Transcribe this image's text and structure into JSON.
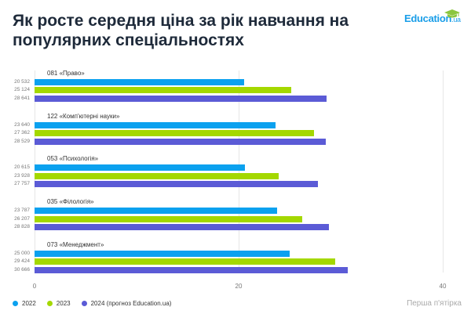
{
  "header": {
    "title": "Як росте середня ціна за рік навчання на популярних спеціальностях",
    "logo_main": "Education",
    "logo_suffix": ".ua"
  },
  "footer": {
    "note": "Перша п'ятірка"
  },
  "colors": {
    "2022": "#0ba1ef",
    "2023": "#a4d800",
    "2024": "#5b5bd6"
  },
  "chart_data": {
    "type": "bar",
    "orientation": "horizontal",
    "categories": [
      "081 «Право»",
      "122 «Комп'ютерні науки»",
      "053 «Психологія»",
      "035 «Філологія»",
      "073 «Менеджмент»"
    ],
    "series": [
      {
        "name": "2022",
        "values": [
          20532,
          23640,
          20615,
          23787,
          25000
        ],
        "labels": [
          "20 532",
          "23 640",
          "20 615",
          "23 787",
          "25 000"
        ]
      },
      {
        "name": "2023",
        "values": [
          25124,
          27362,
          23928,
          26207,
          29424
        ],
        "labels": [
          "25 124",
          "27 362",
          "23 928",
          "26 207",
          "29 424"
        ]
      },
      {
        "name": "2024 (прогноз Education.ua)",
        "values": [
          28641,
          28529,
          27757,
          28828,
          30666
        ],
        "labels": [
          "28 641",
          "28 529",
          "27 757",
          "28 828",
          "30 666"
        ]
      }
    ],
    "xticks": [
      "0",
      "20",
      "40"
    ],
    "xlim": [
      0,
      40000
    ],
    "grid": true,
    "legend": "bottom-left"
  }
}
